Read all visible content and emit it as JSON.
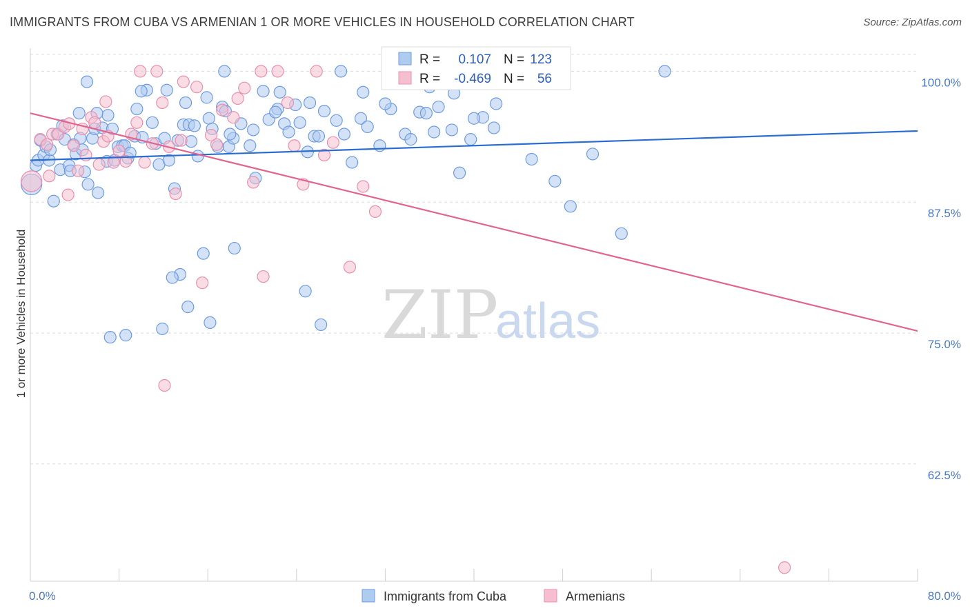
{
  "title": "IMMIGRANTS FROM CUBA VS ARMENIAN 1 OR MORE VEHICLES IN HOUSEHOLD CORRELATION CHART",
  "source": "Source: ZipAtlas.com",
  "watermark": {
    "zip": "ZIP",
    "atlas": "atlas"
  },
  "stats": {
    "r_label": "R =",
    "n_label": "N =",
    "series1": {
      "r": "0.107",
      "n": "123"
    },
    "series2": {
      "r": "-0.469",
      "n": "56"
    }
  },
  "colors": {
    "blue_fill": "#aecbf0",
    "blue_stroke": "#6f9be0",
    "blue_line": "#2a6dd0",
    "pink_fill": "#f6bfd0",
    "pink_stroke": "#ea8fae",
    "pink_line": "#e0648f",
    "grid": "#dddddd",
    "tick_label": "#4a78c4"
  },
  "chart_data": {
    "type": "scatter",
    "title": "IMMIGRANTS FROM CUBA VS ARMENIAN 1 OR MORE VEHICLES IN HOUSEHOLD CORRELATION CHART",
    "xlabel": "",
    "ylabel": "1 or more Vehicles in Household",
    "xlim": [
      0,
      80
    ],
    "ylim": [
      51.3,
      102.2
    ],
    "x_tick_labels": [
      "0.0%",
      "80.0%"
    ],
    "y_ticks": [
      62.5,
      75.0,
      87.5,
      100.0
    ],
    "y_tick_labels": [
      "62.5%",
      "75.0%",
      "87.5%",
      "100.0%"
    ],
    "grid": true,
    "legend_position": "bottom-center",
    "series": [
      {
        "name": "Immigrants from Cuba",
        "r": 0.107,
        "n": 123,
        "trend": {
          "x": [
            0,
            80
          ],
          "y": [
            91.5,
            94.3
          ]
        },
        "points": [
          [
            0.1,
            89.2
          ],
          [
            0.5,
            91.0
          ],
          [
            0.7,
            91.5
          ],
          [
            0.9,
            93.4
          ],
          [
            1.2,
            92.0
          ],
          [
            1.4,
            92.8
          ],
          [
            1.7,
            91.5
          ],
          [
            1.8,
            92.5
          ],
          [
            2.1,
            87.6
          ],
          [
            2.4,
            94.0
          ],
          [
            2.7,
            90.6
          ],
          [
            2.9,
            94.8
          ],
          [
            3.1,
            93.5
          ],
          [
            3.5,
            91.0
          ],
          [
            3.6,
            90.5
          ],
          [
            3.9,
            93.0
          ],
          [
            4.1,
            92.1
          ],
          [
            4.4,
            96.0
          ],
          [
            4.5,
            93.6
          ],
          [
            4.7,
            92.5
          ],
          [
            4.9,
            90.4
          ],
          [
            5.2,
            89.2
          ],
          [
            5.6,
            93.6
          ],
          [
            5.8,
            94.5
          ],
          [
            6.1,
            88.4
          ],
          [
            6.5,
            94.6
          ],
          [
            6.9,
            91.4
          ],
          [
            7.0,
            95.8
          ],
          [
            7.4,
            94.5
          ],
          [
            7.6,
            91.5
          ],
          [
            7.9,
            92.8
          ],
          [
            8.3,
            92.9
          ],
          [
            8.5,
            92.9
          ],
          [
            8.8,
            91.7
          ],
          [
            9.0,
            92.2
          ],
          [
            9.4,
            93.8
          ],
          [
            9.6,
            96.4
          ],
          [
            10.1,
            93.7
          ],
          [
            10.5,
            98.2
          ],
          [
            11.0,
            95.1
          ],
          [
            11.3,
            93.1
          ],
          [
            11.6,
            91.1
          ],
          [
            12.1,
            93.6
          ],
          [
            12.5,
            91.5
          ],
          [
            13.0,
            88.8
          ],
          [
            13.3,
            93.4
          ],
          [
            13.5,
            80.6
          ],
          [
            13.8,
            94.9
          ],
          [
            14.3,
            94.9
          ],
          [
            14.5,
            93.3
          ],
          [
            14.8,
            94.8
          ],
          [
            15.1,
            91.9
          ],
          [
            15.6,
            82.6
          ],
          [
            16.1,
            95.5
          ],
          [
            16.4,
            94.5
          ],
          [
            16.9,
            92.8
          ],
          [
            17.3,
            96.6
          ],
          [
            17.6,
            96.2
          ],
          [
            17.9,
            92.8
          ],
          [
            18.3,
            93.6
          ],
          [
            19.0,
            95.0
          ],
          [
            19.8,
            92.9
          ],
          [
            20.3,
            89.8
          ],
          [
            21.0,
            98.1
          ],
          [
            21.5,
            95.4
          ],
          [
            22.3,
            96.4
          ],
          [
            22.9,
            95.0
          ],
          [
            23.3,
            94.2
          ],
          [
            24.3,
            95.1
          ],
          [
            25.0,
            92.3
          ],
          [
            25.6,
            93.8
          ],
          [
            26.0,
            93.8
          ],
          [
            26.5,
            96.2
          ],
          [
            27.6,
            95.3
          ],
          [
            28.3,
            94.0
          ],
          [
            29.0,
            91.3
          ],
          [
            29.8,
            95.5
          ],
          [
            30.4,
            94.7
          ],
          [
            31.5,
            92.9
          ],
          [
            32.5,
            96.4
          ],
          [
            33.8,
            94.0
          ],
          [
            34.3,
            93.5
          ],
          [
            35.1,
            96.1
          ],
          [
            35.7,
            96.0
          ],
          [
            36.4,
            94.2
          ],
          [
            36.8,
            96.6
          ],
          [
            38.0,
            94.4
          ],
          [
            38.7,
            90.3
          ],
          [
            39.7,
            93.5
          ],
          [
            40.8,
            95.6
          ],
          [
            41.8,
            94.6
          ],
          [
            45.2,
            91.6
          ],
          [
            47.3,
            89.5
          ],
          [
            48.7,
            87.1
          ],
          [
            50.7,
            92.1
          ],
          [
            53.3,
            84.5
          ],
          [
            57.2,
            100.0
          ],
          [
            5.1,
            99.0
          ],
          [
            6.0,
            96.0
          ],
          [
            10.0,
            98.1
          ],
          [
            12.3,
            98.2
          ],
          [
            14.0,
            97.0
          ],
          [
            15.9,
            97.5
          ],
          [
            17.5,
            100.0
          ],
          [
            22.5,
            98.0
          ],
          [
            25.2,
            97.0
          ],
          [
            28.0,
            100.0
          ],
          [
            30.0,
            98.0
          ],
          [
            32.0,
            96.9
          ],
          [
            34.0,
            99.0
          ],
          [
            36.0,
            98.5
          ],
          [
            38.2,
            97.9
          ],
          [
            40.0,
            95.5
          ],
          [
            42.0,
            96.9
          ],
          [
            7.2,
            74.6
          ],
          [
            8.6,
            74.8
          ],
          [
            11.9,
            75.4
          ],
          [
            16.2,
            76.0
          ],
          [
            14.2,
            77.5
          ],
          [
            18.4,
            83.1
          ],
          [
            24.8,
            79.0
          ],
          [
            26.2,
            75.8
          ],
          [
            12.8,
            80.3
          ],
          [
            18.0,
            94.0
          ],
          [
            20.1,
            94.4
          ],
          [
            22.1,
            96.1
          ],
          [
            23.9,
            96.8
          ]
        ]
      },
      {
        "name": "Armenians",
        "r": -0.469,
        "n": 56,
        "trend": {
          "x": [
            0,
            80
          ],
          "y": [
            96.0,
            75.2
          ]
        },
        "points": [
          [
            0.1,
            89.5
          ],
          [
            0.9,
            93.5
          ],
          [
            1.5,
            93.0
          ],
          [
            2.0,
            94.0
          ],
          [
            2.5,
            94.0
          ],
          [
            3.1,
            94.7
          ],
          [
            3.5,
            95.0
          ],
          [
            3.9,
            92.9
          ],
          [
            4.3,
            90.5
          ],
          [
            4.7,
            94.5
          ],
          [
            5.0,
            92.0
          ],
          [
            5.5,
            95.6
          ],
          [
            5.8,
            95.1
          ],
          [
            6.2,
            91.1
          ],
          [
            6.6,
            93.3
          ],
          [
            7.0,
            93.8
          ],
          [
            7.5,
            91.3
          ],
          [
            8.0,
            92.4
          ],
          [
            8.6,
            91.4
          ],
          [
            9.1,
            94.0
          ],
          [
            9.6,
            95.1
          ],
          [
            10.3,
            91.3
          ],
          [
            11.0,
            93.1
          ],
          [
            11.9,
            97.0
          ],
          [
            12.5,
            92.8
          ],
          [
            13.1,
            88.3
          ],
          [
            13.6,
            93.4
          ],
          [
            15.0,
            98.5
          ],
          [
            15.5,
            79.8
          ],
          [
            16.8,
            93.0
          ],
          [
            17.3,
            96.3
          ],
          [
            18.7,
            97.4
          ],
          [
            19.3,
            98.4
          ],
          [
            20.1,
            89.4
          ],
          [
            21.0,
            80.4
          ],
          [
            22.3,
            100.0
          ],
          [
            23.8,
            92.9
          ],
          [
            24.6,
            89.2
          ],
          [
            25.8,
            100.0
          ],
          [
            26.5,
            92.0
          ],
          [
            27.3,
            93.2
          ],
          [
            28.8,
            81.3
          ],
          [
            30.0,
            89.0
          ],
          [
            31.1,
            86.6
          ],
          [
            1.7,
            90.0
          ],
          [
            3.4,
            88.2
          ],
          [
            6.8,
            97.1
          ],
          [
            9.9,
            100.0
          ],
          [
            11.4,
            100.0
          ],
          [
            13.8,
            99.0
          ],
          [
            16.3,
            93.9
          ],
          [
            18.3,
            95.6
          ],
          [
            20.8,
            100.0
          ],
          [
            23.2,
            97.0
          ],
          [
            12.1,
            70.0
          ],
          [
            68.0,
            52.6
          ]
        ]
      }
    ]
  }
}
